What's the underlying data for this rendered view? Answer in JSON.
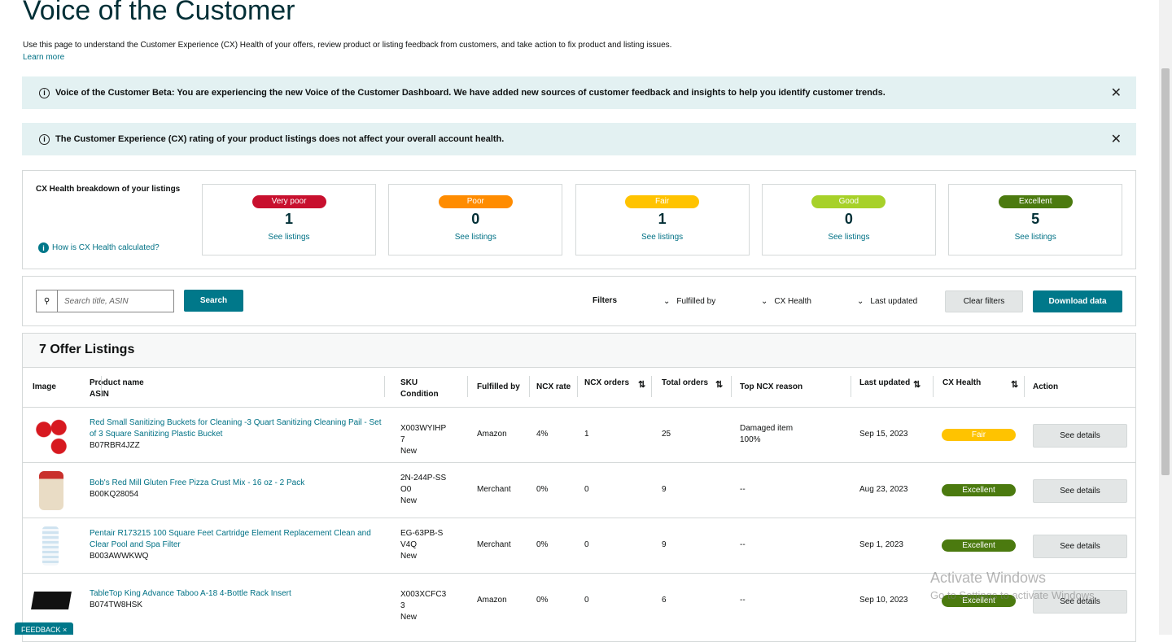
{
  "header": {
    "title": "Voice of the Customer",
    "description": "Use this page to understand the Customer Experience (CX) Health of your offers, review product or listing feedback from customers, and take action to fix product and listing issues.",
    "learn_more": "Learn more"
  },
  "banners": [
    {
      "text": "Voice of the Customer Beta: You are experiencing the new Voice of the Customer Dashboard. We have added new sources of customer feedback and insights to help you identify customer trends."
    },
    {
      "text": "The Customer Experience (CX) rating of your product listings does not affect your overall account health."
    }
  ],
  "cx_health": {
    "label": "CX Health breakdown of your listings",
    "help": "How is CX Health calculated?",
    "cards": [
      {
        "rating": "Very poor",
        "count": 1,
        "link": "See listings",
        "color": "#c8102e"
      },
      {
        "rating": "Poor",
        "count": 0,
        "link": "See listings",
        "color": "#ff8c00"
      },
      {
        "rating": "Fair",
        "count": 1,
        "link": "See listings",
        "color": "#ffc300"
      },
      {
        "rating": "Good",
        "count": 0,
        "link": "See listings",
        "color": "#a7d129"
      },
      {
        "rating": "Excellent",
        "count": 5,
        "link": "See listings",
        "color": "#4b7a0f"
      }
    ]
  },
  "toolbar": {
    "search_placeholder": "Search title, ASIN",
    "search_button": "Search",
    "filters_label": "Filters",
    "filters": [
      "Fulfilled by",
      "CX Health",
      "Last updated"
    ],
    "clear": "Clear filters",
    "download": "Download data"
  },
  "listings": {
    "title": "7 Offer Listings",
    "columns": [
      [
        "Image"
      ],
      [
        "Product name",
        "ASIN"
      ],
      [
        "SKU",
        "Condition"
      ],
      [
        "Fulfilled by"
      ],
      [
        "NCX rate"
      ],
      [
        "NCX orders"
      ],
      [
        "Total orders"
      ],
      [
        "Top NCX reason"
      ],
      [
        "Last updated"
      ],
      [
        "CX Health"
      ],
      [
        "Action"
      ]
    ],
    "rows": [
      {
        "product": "Red Small Sanitizing Buckets for Cleaning -3 Quart Sanitizing Cleaning Pail - Set of 3 Square Sanitizing Plastic Bucket",
        "asin": "B07RBR4JZZ",
        "sku": "X003WYIHP7",
        "condition": "New",
        "fulfilled": "Amazon",
        "ncx_rate": "4%",
        "ncx_orders": "1",
        "total_orders": "25",
        "top_reason": [
          "Damaged item",
          "100%"
        ],
        "last_updated": "Sep 15, 2023",
        "cx_health": "Fair",
        "action": "See details"
      },
      {
        "product": "Bob's Red Mill Gluten Free Pizza Crust Mix - 16 oz - 2 Pack",
        "asin": "B00KQ28054",
        "sku": "2N-244P-SSO0",
        "condition": "New",
        "fulfilled": "Merchant",
        "ncx_rate": "0%",
        "ncx_orders": "0",
        "total_orders": "9",
        "top_reason": [
          "--"
        ],
        "last_updated": "Aug 23, 2023",
        "cx_health": "Excellent",
        "action": "See details"
      },
      {
        "product": "Pentair R173215 100 Square Feet Cartridge Element Replacement Clean and Clear Pool and Spa Filter",
        "asin": "B003AWWKWQ",
        "sku": "EG-63PB-SV4Q",
        "condition": "New",
        "fulfilled": "Merchant",
        "ncx_rate": "0%",
        "ncx_orders": "0",
        "total_orders": "9",
        "top_reason": [
          "--"
        ],
        "last_updated": "Sep 1, 2023",
        "cx_health": "Excellent",
        "action": "See details"
      },
      {
        "product": "TableTop King Advance Taboo A-18 4-Bottle Rack Insert",
        "asin": "B074TW8HSK",
        "sku": "X003XCFC33",
        "condition": "New",
        "fulfilled": "Amazon",
        "ncx_rate": "0%",
        "ncx_orders": "0",
        "total_orders": "6",
        "top_reason": [
          "--"
        ],
        "last_updated": "Sep 10, 2023",
        "cx_health": "Excellent",
        "action": "See details"
      }
    ]
  },
  "watermark": {
    "title": "Activate Windows",
    "text": "Go to Settings to activate Windows."
  },
  "feedback": "FEEDBACK"
}
